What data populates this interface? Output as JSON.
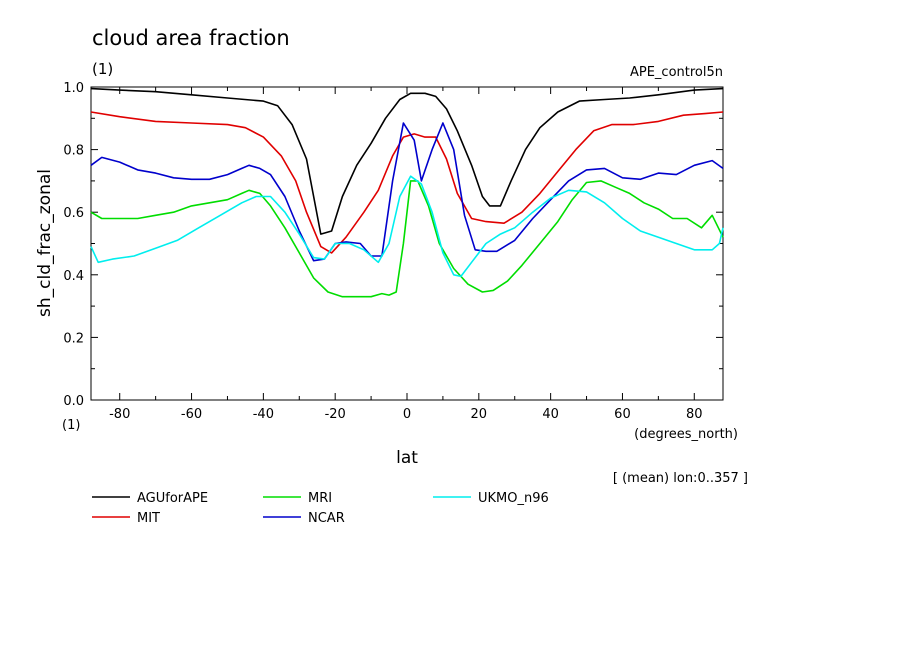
{
  "chart_data": {
    "type": "line",
    "title": "cloud area fraction",
    "title_unit": "(1)",
    "experiment": "APE_control5n",
    "ylabel": "sh_cld_frac_zonal",
    "y_unit": "(1)",
    "xlabel": "lat",
    "x_unit": "(degrees_north)",
    "note": "[ (mean) lon:0..357 ]",
    "xlim": [
      -88,
      88
    ],
    "ylim": [
      0,
      1
    ],
    "xticks": [
      -80,
      -60,
      -40,
      -20,
      0,
      20,
      40,
      60,
      80
    ],
    "xtick_labels": [
      "-80",
      "-60",
      "-40",
      "-20",
      "0",
      "20",
      "40",
      "60",
      "80"
    ],
    "yticks": [
      0,
      0.2,
      0.4,
      0.6,
      0.8,
      1.0
    ],
    "ytick_labels": [
      "0.0",
      "0.2",
      "0.4",
      "0.6",
      "0.8",
      "1.0"
    ],
    "grid": false,
    "legend_position": "below-left",
    "series": [
      {
        "name": "AGUforAPE",
        "color": "#000000",
        "points": [
          [
            -88,
            0.995
          ],
          [
            -80,
            0.99
          ],
          [
            -70,
            0.985
          ],
          [
            -60,
            0.975
          ],
          [
            -50,
            0.965
          ],
          [
            -40,
            0.955
          ],
          [
            -36,
            0.94
          ],
          [
            -32,
            0.88
          ],
          [
            -28,
            0.77
          ],
          [
            -24,
            0.53
          ],
          [
            -21,
            0.54
          ],
          [
            -18,
            0.65
          ],
          [
            -14,
            0.75
          ],
          [
            -10,
            0.82
          ],
          [
            -6,
            0.9
          ],
          [
            -2,
            0.96
          ],
          [
            1,
            0.98
          ],
          [
            5,
            0.98
          ],
          [
            8,
            0.97
          ],
          [
            11,
            0.93
          ],
          [
            14,
            0.86
          ],
          [
            18,
            0.75
          ],
          [
            21,
            0.65
          ],
          [
            23,
            0.62
          ],
          [
            26,
            0.62
          ],
          [
            29,
            0.7
          ],
          [
            33,
            0.8
          ],
          [
            37,
            0.87
          ],
          [
            42,
            0.92
          ],
          [
            48,
            0.955
          ],
          [
            55,
            0.96
          ],
          [
            62,
            0.965
          ],
          [
            70,
            0.975
          ],
          [
            80,
            0.99
          ],
          [
            88,
            0.995
          ]
        ]
      },
      {
        "name": "MIT",
        "color": "#e00000",
        "points": [
          [
            -88,
            0.92
          ],
          [
            -80,
            0.905
          ],
          [
            -70,
            0.89
          ],
          [
            -60,
            0.885
          ],
          [
            -50,
            0.88
          ],
          [
            -45,
            0.87
          ],
          [
            -40,
            0.84
          ],
          [
            -35,
            0.78
          ],
          [
            -31,
            0.7
          ],
          [
            -28,
            0.6
          ],
          [
            -24,
            0.49
          ],
          [
            -21,
            0.47
          ],
          [
            -17,
            0.52
          ],
          [
            -12,
            0.6
          ],
          [
            -8,
            0.67
          ],
          [
            -4,
            0.78
          ],
          [
            -1,
            0.84
          ],
          [
            2,
            0.85
          ],
          [
            5,
            0.84
          ],
          [
            8,
            0.84
          ],
          [
            11,
            0.77
          ],
          [
            14,
            0.66
          ],
          [
            18,
            0.58
          ],
          [
            22,
            0.57
          ],
          [
            27,
            0.565
          ],
          [
            32,
            0.6
          ],
          [
            37,
            0.66
          ],
          [
            42,
            0.73
          ],
          [
            47,
            0.8
          ],
          [
            52,
            0.86
          ],
          [
            57,
            0.88
          ],
          [
            63,
            0.88
          ],
          [
            70,
            0.89
          ],
          [
            77,
            0.91
          ],
          [
            83,
            0.915
          ],
          [
            88,
            0.92
          ]
        ]
      },
      {
        "name": "MRI",
        "color": "#00dd00",
        "points": [
          [
            -88,
            0.6
          ],
          [
            -85,
            0.58
          ],
          [
            -80,
            0.58
          ],
          [
            -75,
            0.58
          ],
          [
            -70,
            0.59
          ],
          [
            -65,
            0.6
          ],
          [
            -60,
            0.62
          ],
          [
            -55,
            0.63
          ],
          [
            -50,
            0.64
          ],
          [
            -46,
            0.66
          ],
          [
            -44,
            0.67
          ],
          [
            -41,
            0.66
          ],
          [
            -38,
            0.62
          ],
          [
            -34,
            0.55
          ],
          [
            -30,
            0.47
          ],
          [
            -26,
            0.39
          ],
          [
            -22,
            0.345
          ],
          [
            -18,
            0.33
          ],
          [
            -14,
            0.33
          ],
          [
            -10,
            0.33
          ],
          [
            -7,
            0.34
          ],
          [
            -5,
            0.335
          ],
          [
            -3,
            0.345
          ],
          [
            -1,
            0.5
          ],
          [
            1,
            0.7
          ],
          [
            3,
            0.7
          ],
          [
            6,
            0.62
          ],
          [
            9,
            0.5
          ],
          [
            13,
            0.42
          ],
          [
            17,
            0.37
          ],
          [
            21,
            0.345
          ],
          [
            24,
            0.35
          ],
          [
            28,
            0.38
          ],
          [
            32,
            0.43
          ],
          [
            37,
            0.5
          ],
          [
            42,
            0.57
          ],
          [
            46,
            0.64
          ],
          [
            50,
            0.695
          ],
          [
            54,
            0.7
          ],
          [
            58,
            0.68
          ],
          [
            62,
            0.66
          ],
          [
            66,
            0.63
          ],
          [
            70,
            0.61
          ],
          [
            74,
            0.58
          ],
          [
            78,
            0.58
          ],
          [
            82,
            0.55
          ],
          [
            85,
            0.59
          ],
          [
            88,
            0.52
          ]
        ]
      },
      {
        "name": "NCAR",
        "color": "#0000cc",
        "points": [
          [
            -88,
            0.75
          ],
          [
            -85,
            0.775
          ],
          [
            -80,
            0.76
          ],
          [
            -75,
            0.735
          ],
          [
            -70,
            0.725
          ],
          [
            -65,
            0.71
          ],
          [
            -60,
            0.705
          ],
          [
            -55,
            0.705
          ],
          [
            -50,
            0.72
          ],
          [
            -46,
            0.74
          ],
          [
            -44,
            0.75
          ],
          [
            -41,
            0.74
          ],
          [
            -38,
            0.72
          ],
          [
            -34,
            0.65
          ],
          [
            -30,
            0.54
          ],
          [
            -26,
            0.445
          ],
          [
            -23,
            0.45
          ],
          [
            -20,
            0.5
          ],
          [
            -17,
            0.505
          ],
          [
            -13,
            0.5
          ],
          [
            -10,
            0.46
          ],
          [
            -7,
            0.46
          ],
          [
            -4,
            0.7
          ],
          [
            -1,
            0.885
          ],
          [
            2,
            0.83
          ],
          [
            4,
            0.7
          ],
          [
            7,
            0.8
          ],
          [
            10,
            0.885
          ],
          [
            13,
            0.8
          ],
          [
            16,
            0.59
          ],
          [
            19,
            0.48
          ],
          [
            22,
            0.475
          ],
          [
            25,
            0.475
          ],
          [
            30,
            0.51
          ],
          [
            35,
            0.58
          ],
          [
            40,
            0.64
          ],
          [
            45,
            0.7
          ],
          [
            50,
            0.735
          ],
          [
            55,
            0.74
          ],
          [
            60,
            0.71
          ],
          [
            65,
            0.705
          ],
          [
            70,
            0.725
          ],
          [
            75,
            0.72
          ],
          [
            80,
            0.75
          ],
          [
            85,
            0.765
          ],
          [
            88,
            0.74
          ]
        ]
      },
      {
        "name": "UKMO_n96",
        "color": "#00eeee",
        "points": [
          [
            -88,
            0.49
          ],
          [
            -86,
            0.44
          ],
          [
            -82,
            0.45
          ],
          [
            -76,
            0.46
          ],
          [
            -70,
            0.485
          ],
          [
            -64,
            0.51
          ],
          [
            -58,
            0.55
          ],
          [
            -52,
            0.59
          ],
          [
            -46,
            0.63
          ],
          [
            -42,
            0.65
          ],
          [
            -38,
            0.65
          ],
          [
            -34,
            0.6
          ],
          [
            -30,
            0.53
          ],
          [
            -26,
            0.455
          ],
          [
            -23,
            0.45
          ],
          [
            -20,
            0.5
          ],
          [
            -16,
            0.5
          ],
          [
            -12,
            0.48
          ],
          [
            -8,
            0.44
          ],
          [
            -5,
            0.5
          ],
          [
            -2,
            0.65
          ],
          [
            1,
            0.715
          ],
          [
            4,
            0.69
          ],
          [
            7,
            0.6
          ],
          [
            10,
            0.47
          ],
          [
            13,
            0.4
          ],
          [
            15,
            0.395
          ],
          [
            18,
            0.44
          ],
          [
            22,
            0.5
          ],
          [
            26,
            0.53
          ],
          [
            30,
            0.55
          ],
          [
            35,
            0.6
          ],
          [
            40,
            0.645
          ],
          [
            45,
            0.67
          ],
          [
            50,
            0.665
          ],
          [
            55,
            0.63
          ],
          [
            60,
            0.58
          ],
          [
            65,
            0.54
          ],
          [
            70,
            0.52
          ],
          [
            75,
            0.5
          ],
          [
            80,
            0.48
          ],
          [
            85,
            0.48
          ],
          [
            87,
            0.5
          ],
          [
            88,
            0.55
          ]
        ]
      }
    ]
  }
}
